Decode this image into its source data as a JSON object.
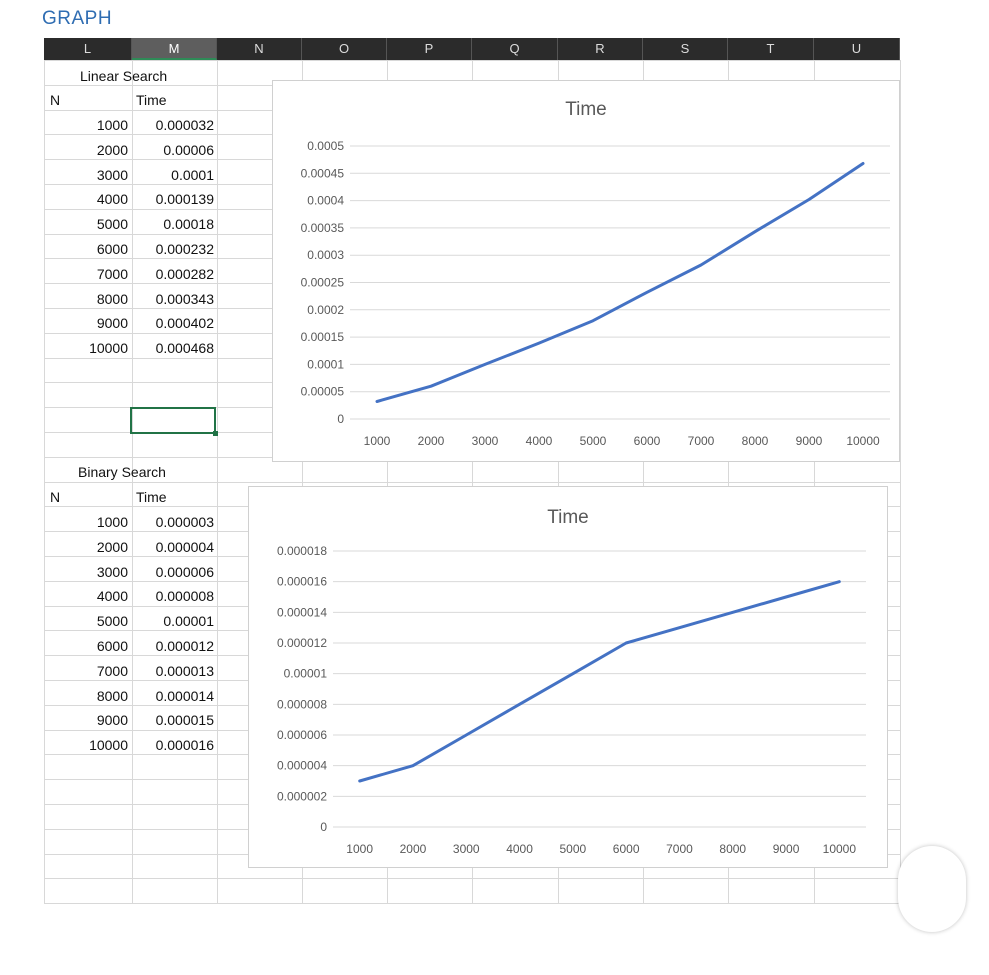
{
  "page": {
    "title": "GRAPH"
  },
  "columns": [
    "L",
    "M",
    "N",
    "O",
    "P",
    "Q",
    "R",
    "S",
    "T",
    "U"
  ],
  "linear_table": {
    "title": "Linear Search",
    "header_n": "N",
    "header_time": "Time",
    "rows": [
      [
        "1000",
        "0.000032"
      ],
      [
        "2000",
        "0.00006"
      ],
      [
        "3000",
        "0.0001"
      ],
      [
        "4000",
        "0.000139"
      ],
      [
        "5000",
        "0.00018"
      ],
      [
        "6000",
        "0.000232"
      ],
      [
        "7000",
        "0.000282"
      ],
      [
        "8000",
        "0.000343"
      ],
      [
        "9000",
        "0.000402"
      ],
      [
        "10000",
        "0.000468"
      ]
    ]
  },
  "binary_table": {
    "title": "Binary Search",
    "header_n": "N",
    "header_time": "Time",
    "rows": [
      [
        "1000",
        "0.000003"
      ],
      [
        "2000",
        "0.000004"
      ],
      [
        "3000",
        "0.000006"
      ],
      [
        "4000",
        "0.000008"
      ],
      [
        "5000",
        "0.00001"
      ],
      [
        "6000",
        "0.000012"
      ],
      [
        "7000",
        "0.000013"
      ],
      [
        "8000",
        "0.000014"
      ],
      [
        "9000",
        "0.000015"
      ],
      [
        "10000",
        "0.000016"
      ]
    ]
  },
  "chart_data": [
    {
      "type": "line",
      "title": "Time",
      "xlabel": "",
      "ylabel": "",
      "categories": [
        "1000",
        "2000",
        "3000",
        "4000",
        "5000",
        "6000",
        "7000",
        "8000",
        "9000",
        "10000"
      ],
      "values": [
        3.2e-05,
        6e-05,
        0.0001,
        0.000139,
        0.00018,
        0.000232,
        0.000282,
        0.000343,
        0.000402,
        0.000468
      ],
      "ylim": [
        0,
        0.0005
      ],
      "yticks": [
        "0",
        "0.00005",
        "0.0001",
        "0.00015",
        "0.0002",
        "0.00025",
        "0.0003",
        "0.00035",
        "0.0004",
        "0.00045",
        "0.0005"
      ],
      "grid": true,
      "legend": "none",
      "line_color": "#4472c4"
    },
    {
      "type": "line",
      "title": "Time",
      "xlabel": "",
      "ylabel": "",
      "categories": [
        "1000",
        "2000",
        "3000",
        "4000",
        "5000",
        "6000",
        "7000",
        "8000",
        "9000",
        "10000"
      ],
      "values": [
        3e-06,
        4e-06,
        6e-06,
        8e-06,
        1e-05,
        1.2e-05,
        1.3e-05,
        1.4e-05,
        1.5e-05,
        1.6e-05
      ],
      "ylim": [
        0,
        1.8e-05
      ],
      "yticks": [
        "0",
        "0.000002",
        "0.000004",
        "0.000006",
        "0.000008",
        "0.00001",
        "0.000012",
        "0.000014",
        "0.000016",
        "0.000018"
      ],
      "grid": true,
      "legend": "none",
      "line_color": "#4472c4"
    }
  ]
}
